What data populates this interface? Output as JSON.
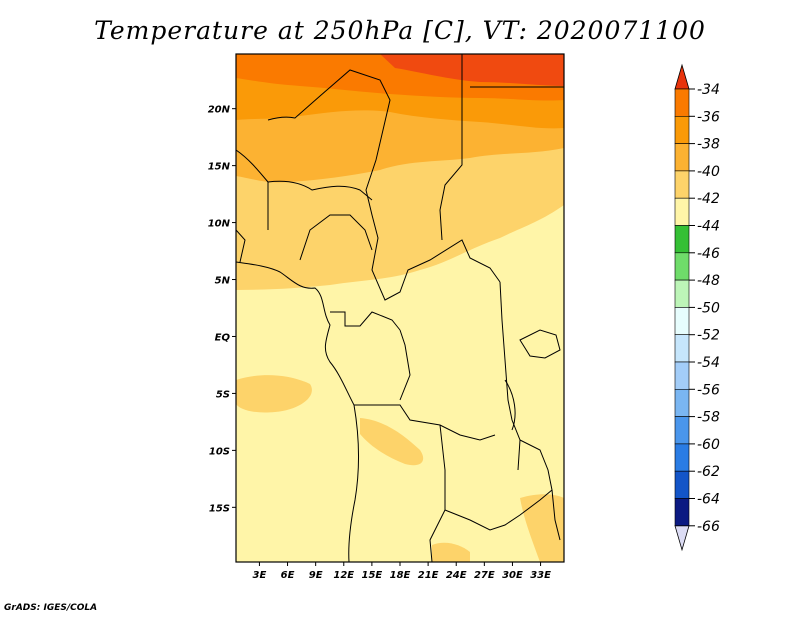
{
  "title": "Temperature at 250hPa [C], VT: 2020071100",
  "credit": "GrADS: IGES/COLA",
  "map": {
    "lon_labels": [
      "3E",
      "6E",
      "9E",
      "12E",
      "15E",
      "18E",
      "21E",
      "24E",
      "27E",
      "30E",
      "33E"
    ],
    "lat_labels": [
      "20N",
      "15N",
      "10N",
      "5N",
      "EQ",
      "5S",
      "10S",
      "15S"
    ],
    "lon_values": [
      3,
      6,
      9,
      12,
      15,
      18,
      21,
      24,
      27,
      30,
      33
    ],
    "lat_values": [
      20,
      15,
      10,
      5,
      0,
      -5,
      -10,
      -15
    ],
    "lon_range": [
      0.5,
      35.5
    ],
    "lat_range": [
      -19.8,
      24.8
    ]
  },
  "colorbar": {
    "levels": [
      "-34",
      "-36",
      "-38",
      "-40",
      "-42",
      "-44",
      "-46",
      "-48",
      "-50",
      "-52",
      "-54",
      "-56",
      "-58",
      "-60",
      "-62",
      "-64",
      "-66"
    ],
    "colors": [
      "#f04a10",
      "#fa7a00",
      "#fa9a08",
      "#fcb232",
      "#fdd36a",
      "#fff5a8",
      "#35c035",
      "#6fdc6a",
      "#bdf5b8",
      "#e7fdfd",
      "#c6e6fc",
      "#a3cdf8",
      "#7ab6f2",
      "#4a96ec",
      "#2a7ce4",
      "#1355c8",
      "#0b1a82",
      "#dcdcf4"
    ],
    "top_arrow_color": "#e8330c",
    "bottom_arrow_color": "#dcdcf4"
  }
}
